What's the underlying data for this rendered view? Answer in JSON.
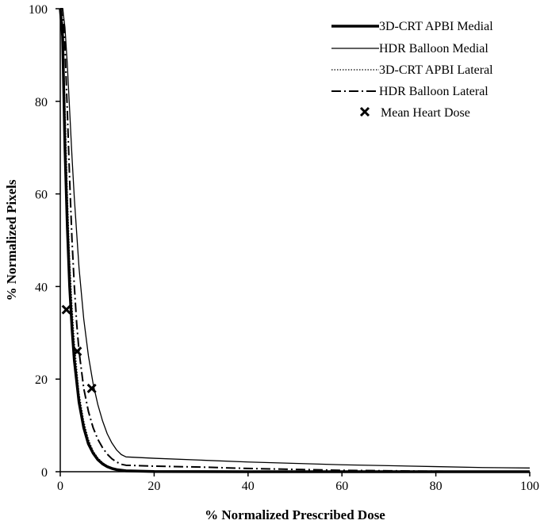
{
  "chart_data": {
    "type": "line",
    "xlabel": "% Normalized Prescribed Dose",
    "ylabel": "% Normalized Pixels",
    "xlim": [
      0,
      100
    ],
    "ylim": [
      0,
      100
    ],
    "xticks": [
      "0",
      "20",
      "40",
      "60",
      "80",
      "100"
    ],
    "yticks": [
      "0",
      "20",
      "40",
      "60",
      "80",
      "100"
    ],
    "grid": false,
    "legend_position": "top-right",
    "series": [
      {
        "name": "3D-CRT APBI Medial",
        "style": "solid-thick",
        "color": "#000000",
        "x": [
          0,
          0.5,
          1,
          1.5,
          2,
          2.5,
          3,
          4,
          5,
          6,
          7,
          8,
          9,
          10,
          11,
          12,
          14,
          20,
          40,
          60,
          80,
          100
        ],
        "y": [
          100,
          94,
          70,
          53,
          40,
          31,
          24,
          15,
          9.5,
          6,
          4,
          2.6,
          1.7,
          1.1,
          0.7,
          0.45,
          0.2,
          0.05,
          0,
          0,
          0,
          0
        ]
      },
      {
        "name": "HDR Balloon Medial",
        "style": "solid-thin",
        "color": "#000000",
        "x": [
          0,
          0.5,
          1,
          1.5,
          2,
          2.5,
          3,
          4,
          5,
          6,
          7,
          8,
          9,
          10,
          11,
          12,
          13,
          14,
          20,
          30,
          40,
          50,
          60,
          70,
          80,
          90,
          100
        ],
        "y": [
          100,
          100,
          96,
          88,
          78,
          68,
          59,
          44,
          33,
          25,
          19,
          14.5,
          11,
          8.2,
          6.2,
          4.7,
          3.7,
          3.2,
          2.9,
          2.5,
          2.1,
          1.8,
          1.5,
          1.3,
          1.1,
          0.9,
          0.8
        ]
      },
      {
        "name": "3D-CRT APBI Lateral",
        "style": "dotted",
        "color": "#000000",
        "x": [
          0,
          0.5,
          1,
          1.5,
          2,
          2.5,
          3,
          4,
          5,
          6,
          7,
          8,
          9,
          10,
          11,
          12,
          14,
          20,
          40,
          60,
          80,
          100
        ],
        "y": [
          100,
          97,
          80,
          61,
          46,
          36,
          28,
          17,
          11,
          7,
          4.5,
          3,
          2,
          1.3,
          0.8,
          0.5,
          0.25,
          0.05,
          0,
          0,
          0,
          0
        ]
      },
      {
        "name": "HDR Balloon Lateral",
        "style": "dash-dot",
        "color": "#000000",
        "x": [
          0,
          0.5,
          1,
          1.5,
          2,
          2.5,
          3,
          3.5,
          4,
          5,
          6,
          7,
          8,
          9,
          10,
          11,
          12,
          13,
          14,
          20,
          30,
          40,
          50,
          60,
          70,
          80,
          100
        ],
        "y": [
          100,
          100,
          92,
          78,
          63,
          50,
          40,
          32,
          26,
          18,
          13,
          9.5,
          7,
          5.2,
          3.8,
          2.8,
          2.1,
          1.6,
          1.4,
          1.2,
          1.0,
          0.7,
          0.5,
          0.3,
          0.2,
          0.1,
          0.05
        ]
      }
    ],
    "markers": {
      "name": "Mean Heart Dose",
      "symbol": "x",
      "points": [
        {
          "x": 1.3,
          "y": 35
        },
        {
          "x": 3.6,
          "y": 26
        },
        {
          "x": 6.7,
          "y": 18
        }
      ]
    }
  }
}
